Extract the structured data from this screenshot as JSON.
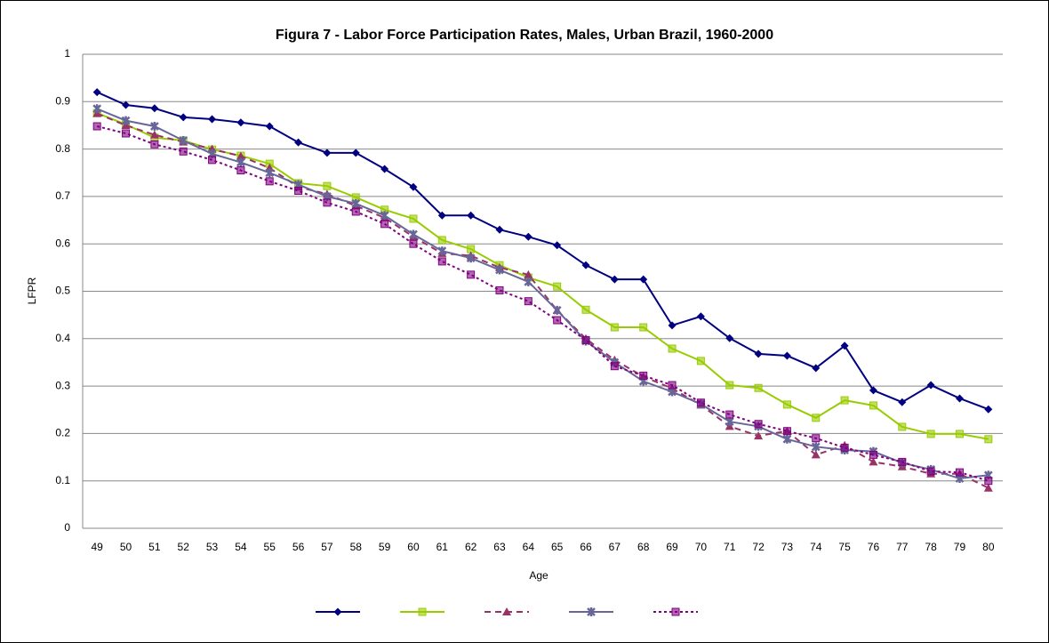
{
  "chart_data": {
    "type": "line",
    "title": "Figura 7 - Labor Force Participation Rates, Males, Urban Brazil, 1960-2000",
    "x_label": "Age",
    "y_label": "LFPR",
    "categories": [
      49,
      50,
      51,
      52,
      53,
      54,
      55,
      56,
      57,
      58,
      59,
      60,
      61,
      62,
      63,
      64,
      65,
      66,
      67,
      68,
      69,
      70,
      71,
      72,
      73,
      74,
      75,
      76,
      77,
      78,
      79,
      80
    ],
    "ylim": [
      0,
      1
    ],
    "yticks": [
      0,
      0.1,
      0.2,
      0.3,
      0.4,
      0.5,
      0.6,
      0.7,
      0.8,
      0.9,
      1
    ],
    "grid": true,
    "legend": "bottom",
    "series": [
      {
        "color": "#000080",
        "marker": "diamond",
        "dash": "solid",
        "values": [
          0.92,
          0.893,
          0.886,
          0.867,
          0.863,
          0.856,
          0.848,
          0.814,
          0.792,
          0.792,
          0.758,
          0.72,
          0.66,
          0.66,
          0.63,
          0.615,
          0.597,
          0.555,
          0.525,
          0.525,
          0.428,
          0.447,
          0.401,
          0.368,
          0.364,
          0.338,
          0.385,
          0.291,
          0.266,
          0.302,
          0.274,
          0.251
        ]
      },
      {
        "color": "#99cc00",
        "marker": "square",
        "dash": "solid",
        "values": [
          0.876,
          0.852,
          0.824,
          0.818,
          0.799,
          0.786,
          0.769,
          0.728,
          0.722,
          0.698,
          0.672,
          0.653,
          0.608,
          0.589,
          0.555,
          0.529,
          0.51,
          0.461,
          0.424,
          0.424,
          0.379,
          0.353,
          0.302,
          0.296,
          0.261,
          0.233,
          0.27,
          0.259,
          0.214,
          0.199,
          0.199,
          0.188
        ]
      },
      {
        "color": "#993366",
        "marker": "triangle",
        "dash": "dash",
        "values": [
          0.875,
          0.85,
          0.83,
          0.815,
          0.8,
          0.785,
          0.76,
          0.72,
          0.705,
          0.68,
          0.655,
          0.615,
          0.58,
          0.575,
          0.55,
          0.535,
          0.46,
          0.4,
          0.355,
          0.32,
          0.295,
          0.26,
          0.215,
          0.195,
          0.205,
          0.155,
          0.175,
          0.14,
          0.13,
          0.115,
          0.115,
          0.085
        ]
      },
      {
        "color": "#666699",
        "marker": "star",
        "dash": "solid",
        "values": [
          0.885,
          0.86,
          0.848,
          0.818,
          0.79,
          0.772,
          0.75,
          0.725,
          0.7,
          0.685,
          0.66,
          0.62,
          0.585,
          0.57,
          0.545,
          0.52,
          0.46,
          0.395,
          0.35,
          0.31,
          0.288,
          0.262,
          0.225,
          0.215,
          0.188,
          0.172,
          0.165,
          0.162,
          0.138,
          0.124,
          0.105,
          0.112
        ]
      },
      {
        "color": "#800080",
        "marker": "square",
        "dash": "dot",
        "values": [
          0.848,
          0.833,
          0.81,
          0.795,
          0.777,
          0.755,
          0.732,
          0.712,
          0.687,
          0.668,
          0.642,
          0.6,
          0.563,
          0.535,
          0.502,
          0.479,
          0.439,
          0.397,
          0.342,
          0.322,
          0.302,
          0.265,
          0.24,
          0.22,
          0.205,
          0.19,
          0.17,
          0.155,
          0.14,
          0.12,
          0.118,
          0.1
        ]
      }
    ]
  }
}
